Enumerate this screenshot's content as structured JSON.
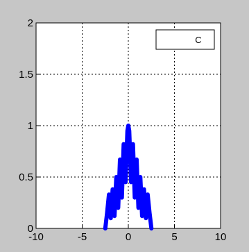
{
  "chart_data": {
    "type": "line",
    "title": "",
    "xlabel": "",
    "ylabel": "",
    "xlim": [
      -10,
      10
    ],
    "ylim": [
      0,
      2
    ],
    "x_ticks": [
      -10,
      -5,
      0,
      5,
      10
    ],
    "x_tick_labels": [
      "-10",
      "-5",
      "0",
      "5",
      "10"
    ],
    "y_ticks": [
      0,
      0.5,
      1,
      1.5,
      2
    ],
    "y_tick_labels": [
      "0",
      "0.5",
      "1",
      "1.5",
      "2"
    ],
    "grid": true,
    "legend": {
      "position": "top-right",
      "entries": [
        "C"
      ]
    },
    "series": [
      {
        "color": "#0000ff",
        "x": [
          -2.5,
          -2.3,
          -2.1,
          -1.9,
          -1.7,
          -1.5,
          -1.3,
          -1.1,
          -0.9,
          -0.7,
          -0.5,
          -0.3,
          -0.1,
          0.0,
          0.1,
          0.3,
          0.5,
          0.7,
          0.9,
          1.1,
          1.3,
          1.5,
          1.7,
          1.9,
          2.1,
          2.3,
          2.5
        ],
        "y": [
          0.0,
          0.15,
          0.33,
          0.1,
          0.38,
          0.12,
          0.5,
          0.2,
          0.67,
          0.3,
          0.82,
          0.45,
          0.95,
          1.0,
          0.95,
          0.45,
          0.82,
          0.3,
          0.67,
          0.2,
          0.5,
          0.12,
          0.38,
          0.1,
          0.33,
          0.15,
          0.0
        ]
      }
    ]
  }
}
